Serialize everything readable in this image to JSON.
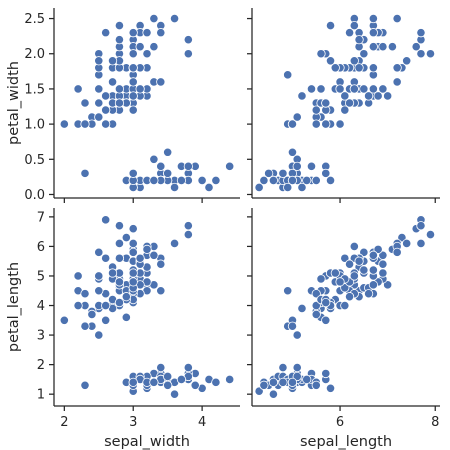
{
  "chart_data": {
    "type": "scatter",
    "layout": "pairgrid-2x2",
    "marker_color": "#4c72b0",
    "grid": false,
    "columns": [
      {
        "key": "sepal_width",
        "label": "sepal_width",
        "xlim": [
          1.85,
          4.55
        ],
        "ticks": [
          2,
          3,
          4
        ],
        "tick_labels": [
          "2",
          "3",
          "4"
        ]
      },
      {
        "key": "sepal_length",
        "label": "sepal_length",
        "xlim": [
          4.15,
          8.1
        ],
        "ticks": [
          6,
          8
        ],
        "tick_labels": [
          "6",
          "8"
        ]
      }
    ],
    "rows": [
      {
        "key": "petal_width",
        "label": "petal_width",
        "ylim": [
          -0.05,
          2.65
        ],
        "ticks": [
          0.0,
          0.5,
          1.0,
          1.5,
          2.0,
          2.5
        ],
        "tick_labels": [
          "0.0",
          "0.5",
          "1.0",
          "1.5",
          "2.0",
          "2.5"
        ]
      },
      {
        "key": "petal_length",
        "label": "petal_length",
        "ylim": [
          0.6,
          7.3
        ],
        "ticks": [
          1,
          2,
          3,
          4,
          5,
          6,
          7
        ],
        "tick_labels": [
          "1",
          "2",
          "3",
          "4",
          "5",
          "6",
          "7"
        ]
      }
    ],
    "data": {
      "sepal_length": [
        5.1,
        4.9,
        4.7,
        4.6,
        5.0,
        5.4,
        4.6,
        5.0,
        4.4,
        4.9,
        5.4,
        4.8,
        4.8,
        4.3,
        5.8,
        5.7,
        5.4,
        5.1,
        5.7,
        5.1,
        5.4,
        5.1,
        4.6,
        5.1,
        4.8,
        5.0,
        5.0,
        5.2,
        5.2,
        4.7,
        4.8,
        5.4,
        5.2,
        5.5,
        4.9,
        5.0,
        5.5,
        4.9,
        4.4,
        5.1,
        5.0,
        4.5,
        4.4,
        5.0,
        5.1,
        4.8,
        5.1,
        4.6,
        5.3,
        5.0,
        7.0,
        6.4,
        6.9,
        5.5,
        6.5,
        5.7,
        6.3,
        4.9,
        6.6,
        5.2,
        5.0,
        5.9,
        6.0,
        6.1,
        5.6,
        6.7,
        5.6,
        5.8,
        6.2,
        5.6,
        5.9,
        6.1,
        6.3,
        6.1,
        6.4,
        6.6,
        6.8,
        6.7,
        6.0,
        5.7,
        5.5,
        5.5,
        5.8,
        6.0,
        5.4,
        6.0,
        6.7,
        6.3,
        5.6,
        5.5,
        5.5,
        6.1,
        5.8,
        5.0,
        5.6,
        5.7,
        5.7,
        6.2,
        5.1,
        5.7,
        6.3,
        5.8,
        7.1,
        6.3,
        6.5,
        7.6,
        4.9,
        7.3,
        6.7,
        7.2,
        6.5,
        6.4,
        6.8,
        5.7,
        5.8,
        6.4,
        6.5,
        7.7,
        7.7,
        6.0,
        6.9,
        5.6,
        7.7,
        6.3,
        6.7,
        7.2,
        6.2,
        6.1,
        6.4,
        7.2,
        7.4,
        7.9,
        6.4,
        6.3,
        6.1,
        7.7,
        6.3,
        6.4,
        6.0,
        6.9,
        6.7,
        6.9,
        5.8,
        6.8,
        6.7,
        6.7,
        6.3,
        6.5,
        6.2,
        5.9
      ],
      "sepal_width": [
        3.5,
        3.0,
        3.2,
        3.1,
        3.6,
        3.9,
        3.4,
        3.4,
        2.9,
        3.1,
        3.7,
        3.4,
        3.0,
        3.0,
        4.0,
        4.4,
        3.9,
        3.5,
        3.8,
        3.8,
        3.4,
        3.7,
        3.6,
        3.3,
        3.4,
        3.0,
        3.4,
        3.5,
        3.4,
        3.2,
        3.1,
        3.4,
        4.1,
        4.2,
        3.1,
        3.2,
        3.5,
        3.6,
        3.0,
        3.4,
        3.5,
        2.3,
        3.2,
        3.5,
        3.8,
        3.0,
        3.8,
        3.2,
        3.7,
        3.3,
        3.2,
        3.2,
        3.1,
        2.3,
        2.8,
        2.8,
        3.3,
        2.4,
        2.9,
        2.7,
        2.0,
        3.0,
        2.2,
        2.9,
        2.9,
        3.1,
        3.0,
        2.7,
        2.2,
        2.5,
        3.2,
        2.8,
        2.5,
        2.8,
        2.9,
        3.0,
        2.8,
        3.0,
        2.9,
        2.6,
        2.4,
        2.4,
        2.7,
        2.7,
        3.0,
        3.4,
        3.1,
        2.3,
        3.0,
        2.5,
        2.6,
        3.0,
        2.6,
        2.3,
        2.7,
        3.0,
        2.9,
        2.9,
        2.5,
        2.8,
        3.3,
        2.7,
        3.0,
        2.9,
        3.0,
        3.0,
        2.5,
        2.9,
        2.5,
        3.6,
        3.2,
        2.7,
        3.0,
        2.5,
        2.8,
        3.2,
        3.0,
        3.8,
        2.6,
        2.2,
        3.2,
        2.8,
        2.8,
        2.7,
        3.3,
        3.2,
        2.8,
        3.0,
        2.8,
        3.0,
        2.8,
        3.8,
        2.8,
        2.8,
        2.6,
        3.0,
        3.4,
        3.1,
        3.0,
        3.1,
        3.1,
        3.1,
        2.7,
        3.2,
        3.3,
        3.0,
        2.5,
        3.0,
        3.4,
        3.0
      ],
      "petal_length": [
        1.4,
        1.4,
        1.3,
        1.5,
        1.4,
        1.7,
        1.4,
        1.5,
        1.4,
        1.5,
        1.5,
        1.6,
        1.4,
        1.1,
        1.2,
        1.5,
        1.3,
        1.4,
        1.7,
        1.5,
        1.7,
        1.5,
        1.0,
        1.7,
        1.9,
        1.6,
        1.6,
        1.5,
        1.4,
        1.6,
        1.6,
        1.5,
        1.5,
        1.4,
        1.5,
        1.2,
        1.3,
        1.4,
        1.3,
        1.5,
        1.3,
        1.3,
        1.3,
        1.6,
        1.9,
        1.4,
        1.6,
        1.4,
        1.5,
        1.4,
        4.7,
        4.5,
        4.9,
        4.0,
        4.6,
        4.5,
        4.7,
        3.3,
        4.6,
        3.9,
        3.5,
        4.2,
        4.0,
        4.7,
        3.6,
        4.4,
        4.5,
        4.1,
        4.5,
        3.9,
        4.8,
        4.0,
        4.9,
        4.7,
        4.3,
        4.4,
        4.8,
        5.0,
        4.5,
        3.5,
        3.8,
        3.7,
        3.9,
        5.1,
        4.5,
        4.5,
        4.7,
        4.4,
        4.1,
        4.0,
        4.4,
        4.6,
        4.0,
        3.3,
        4.2,
        4.2,
        4.2,
        4.3,
        3.0,
        4.1,
        6.0,
        5.1,
        5.9,
        5.6,
        5.8,
        6.6,
        4.5,
        6.3,
        5.8,
        6.1,
        5.1,
        5.3,
        5.5,
        5.0,
        5.1,
        5.3,
        5.5,
        6.7,
        6.9,
        5.0,
        5.7,
        4.9,
        6.7,
        4.9,
        5.7,
        6.0,
        4.8,
        4.9,
        5.6,
        5.8,
        6.1,
        6.4,
        5.6,
        5.1,
        5.6,
        6.1,
        5.6,
        5.5,
        4.8,
        5.4,
        5.6,
        5.1,
        5.1,
        5.9,
        5.7,
        5.2,
        5.0,
        5.2,
        5.4,
        5.1
      ],
      "petal_width": [
        0.2,
        0.2,
        0.2,
        0.2,
        0.2,
        0.4,
        0.3,
        0.2,
        0.2,
        0.1,
        0.2,
        0.2,
        0.1,
        0.1,
        0.2,
        0.4,
        0.4,
        0.3,
        0.3,
        0.3,
        0.2,
        0.4,
        0.2,
        0.5,
        0.2,
        0.2,
        0.4,
        0.2,
        0.2,
        0.2,
        0.2,
        0.4,
        0.1,
        0.2,
        0.2,
        0.2,
        0.2,
        0.1,
        0.2,
        0.2,
        0.3,
        0.3,
        0.2,
        0.6,
        0.4,
        0.3,
        0.2,
        0.2,
        0.2,
        0.2,
        1.4,
        1.5,
        1.5,
        1.3,
        1.5,
        1.3,
        1.6,
        1.0,
        1.3,
        1.4,
        1.0,
        1.5,
        1.0,
        1.4,
        1.3,
        1.4,
        1.5,
        1.0,
        1.5,
        1.1,
        1.8,
        1.3,
        1.5,
        1.2,
        1.3,
        1.4,
        1.4,
        1.7,
        1.5,
        1.0,
        1.1,
        1.0,
        1.2,
        1.6,
        1.5,
        1.6,
        1.5,
        1.3,
        1.3,
        1.3,
        1.2,
        1.4,
        1.2,
        1.0,
        1.3,
        1.2,
        1.3,
        1.3,
        1.1,
        1.3,
        2.5,
        1.9,
        2.1,
        1.8,
        2.2,
        2.1,
        1.7,
        1.8,
        1.8,
        2.5,
        2.0,
        1.9,
        2.1,
        2.0,
        2.4,
        2.3,
        1.8,
        2.2,
        2.3,
        1.5,
        2.3,
        2.0,
        2.0,
        1.8,
        2.1,
        1.8,
        1.8,
        1.8,
        2.1,
        1.6,
        1.9,
        2.0,
        2.2,
        1.5,
        1.4,
        2.3,
        2.4,
        1.8,
        1.8,
        2.1,
        2.4,
        2.3,
        1.9,
        2.3,
        2.5,
        2.3,
        1.9,
        2.0,
        2.3,
        1.8
      ]
    }
  }
}
